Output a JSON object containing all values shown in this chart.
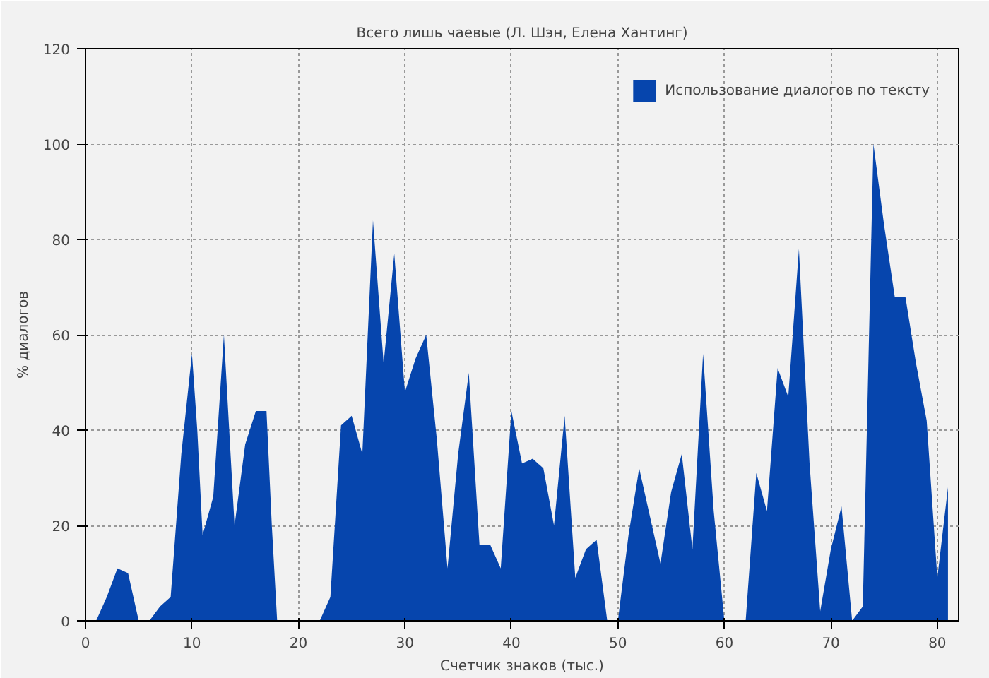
{
  "chart_data": {
    "type": "area",
    "title": "Всего лишь чаевые (Л. Шэн, Елена Хантинг)",
    "xlabel": "Счетчик знаков (тыс.)",
    "ylabel": "% диалогов",
    "x": [
      1,
      2,
      3,
      4,
      5,
      6,
      7,
      8,
      9,
      10,
      10.5,
      11,
      12,
      13,
      13.5,
      14,
      15,
      16,
      17,
      17.5,
      18,
      19,
      20,
      21,
      22,
      23,
      24,
      25,
      26,
      27,
      28,
      29,
      30,
      31,
      32,
      33,
      34,
      35,
      36,
      37,
      38,
      39,
      40,
      41,
      42,
      43,
      44,
      45,
      46,
      47,
      48,
      49,
      50,
      51,
      52,
      53,
      54,
      55,
      56,
      57,
      58,
      59,
      60,
      61,
      62,
      63,
      64,
      65,
      66,
      67,
      68,
      69,
      70,
      71,
      72,
      73,
      74,
      75,
      76,
      77,
      78,
      79,
      80,
      81
    ],
    "series": [
      {
        "name": "Использование диалогов по тексту",
        "color": "#0645ad",
        "values": [
          0,
          5,
          11,
          10,
          0,
          0,
          3,
          5,
          35,
          56,
          40,
          18,
          26,
          60,
          40,
          20,
          37,
          44,
          44,
          20,
          0,
          0,
          0,
          0,
          0,
          5,
          41,
          43,
          35,
          84,
          54,
          77,
          48,
          55,
          60,
          38,
          11,
          35,
          52,
          16,
          16,
          11,
          44,
          33,
          34,
          32,
          20,
          43,
          9,
          15,
          17,
          0,
          0,
          18,
          32,
          22,
          12,
          27,
          35,
          15,
          56,
          23,
          0,
          0,
          0,
          31,
          23,
          53,
          47,
          78,
          33,
          2,
          15,
          24,
          0,
          3,
          100,
          83,
          68,
          68,
          54,
          42,
          9,
          28
        ]
      }
    ],
    "xlim": [
      0,
      82
    ],
    "ylim": [
      0,
      120
    ],
    "xticks": [
      0,
      10,
      20,
      30,
      40,
      50,
      60,
      70,
      80
    ],
    "yticks": [
      0,
      20,
      40,
      60,
      80,
      100,
      120
    ],
    "grid": true,
    "legend": "top right"
  }
}
